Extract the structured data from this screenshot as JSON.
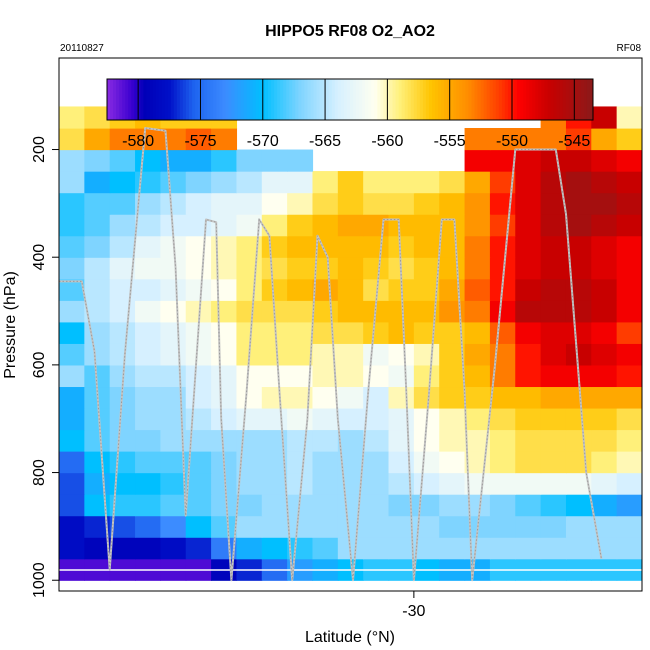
{
  "chart_data": {
    "type": "heatmap",
    "title": "HIPPO5 RF08 O2_AO2",
    "date_label": "20110827",
    "flight_label": "RF08",
    "xlabel": "Latitude (°N)",
    "ylabel": "Pressure (hPa)",
    "x_ticks": [
      {
        "value": -30,
        "label": "-30"
      }
    ],
    "y_ticks": [
      {
        "value": 200,
        "label": "200"
      },
      {
        "value": 400,
        "label": "400"
      },
      {
        "value": 600,
        "label": "600"
      },
      {
        "value": 800,
        "label": "800"
      },
      {
        "value": 1000,
        "label": "1000"
      }
    ],
    "xlim": [
      -37,
      -25.5
    ],
    "ylim": [
      1020,
      30
    ],
    "grid": false,
    "colorbar": {
      "placement": "top",
      "range": [
        -582.5,
        -543.5
      ],
      "ticks": [
        {
          "value": -580,
          "label": "-580"
        },
        {
          "value": -575,
          "label": "-575"
        },
        {
          "value": -570,
          "label": "-570"
        },
        {
          "value": -565,
          "label": "-565"
        },
        {
          "value": -560,
          "label": "-560"
        },
        {
          "value": -555,
          "label": "-555"
        },
        {
          "value": -550,
          "label": "-550"
        },
        {
          "value": -545,
          "label": "-545"
        }
      ],
      "stops": [
        {
          "v": -582.5,
          "c": "#8a2be2"
        },
        {
          "v": -580.5,
          "c": "#3a00d0"
        },
        {
          "v": -579.5,
          "c": "#0000b8"
        },
        {
          "v": -577.5,
          "c": "#0010c8"
        },
        {
          "v": -575.5,
          "c": "#1e64f0"
        },
        {
          "v": -573,
          "c": "#3c8cff"
        },
        {
          "v": -570,
          "c": "#00bfff"
        },
        {
          "v": -567,
          "c": "#7fd4ff"
        },
        {
          "v": -564,
          "c": "#d6f0ff"
        },
        {
          "v": -561,
          "c": "#fffff0"
        },
        {
          "v": -559,
          "c": "#fff07a"
        },
        {
          "v": -556.5,
          "c": "#ffc400"
        },
        {
          "v": -553.5,
          "c": "#ff8c00"
        },
        {
          "v": -551,
          "c": "#ff3c00"
        },
        {
          "v": -549.5,
          "c": "#ff0000"
        },
        {
          "v": -547,
          "c": "#c80000"
        },
        {
          "v": -543.5,
          "c": "#8b1a1a"
        }
      ]
    },
    "grid_x_edges": [
      -37,
      -36.5,
      -36,
      -35.5,
      -35,
      -34.5,
      -34,
      -33.5,
      -33,
      -32.5,
      -32,
      -31.5,
      -31,
      -30.5,
      -30,
      -29.5,
      -29,
      -28.5,
      -28,
      -27.5,
      -27,
      -26.5,
      -26,
      -25.5
    ],
    "grid_p_edges": [
      1000,
      960,
      920,
      880,
      840,
      800,
      760,
      720,
      680,
      640,
      600,
      560,
      520,
      480,
      440,
      400,
      360,
      320,
      280,
      240,
      200,
      160,
      120
    ],
    "cells": [
      [
        -581,
        -581,
        -581,
        -581,
        -581,
        -581,
        -579,
        -577,
        -575,
        -572,
        -571,
        -570,
        -569,
        -569,
        -570,
        -571,
        -571,
        -569,
        -569,
        -569,
        -569,
        -569,
        -569
      ],
      [
        -578,
        -579,
        -579,
        -579,
        -578,
        -577,
        -574,
        -571,
        -570,
        -569,
        -568,
        -566,
        -566,
        -566,
        -566,
        -566,
        -566,
        -566,
        -566,
        -566,
        -566,
        -566,
        -566
      ],
      [
        -578,
        -577,
        -576,
        -575,
        -573,
        -570,
        -568,
        -566,
        -566,
        -566,
        -566,
        -566,
        -566,
        -566,
        -566,
        -567,
        -567,
        -567,
        -567,
        -567,
        -566,
        -566,
        -566
      ],
      [
        -576,
        -570,
        -569,
        -569,
        -568,
        -568,
        -567,
        -567,
        -566,
        -566,
        -566,
        -566,
        -566,
        -567,
        -567,
        -566,
        -566,
        -567,
        -568,
        -569,
        -570,
        -571,
        -572
      ],
      [
        -576,
        -571,
        -570,
        -570,
        -569,
        -568,
        -567,
        -566,
        -566,
        -565,
        -566,
        -566,
        -566,
        -565,
        -564,
        -563,
        -562,
        -562,
        -562,
        -562,
        -562,
        -563,
        -564
      ],
      [
        -575,
        -570,
        -569,
        -568,
        -568,
        -568,
        -567,
        -566,
        -566,
        -565,
        -566,
        -566,
        -566,
        -564,
        -562,
        -561,
        -560,
        -559,
        -558,
        -558,
        -558,
        -559,
        -560
      ],
      [
        -570,
        -568,
        -567,
        -567,
        -566,
        -566,
        -566,
        -566,
        -566,
        -565,
        -565,
        -566,
        -565,
        -563,
        -561,
        -560,
        -560,
        -559,
        -558,
        -558,
        -558,
        -558,
        -559
      ],
      [
        -571,
        -568,
        -567,
        -566,
        -566,
        -565,
        -564,
        -563,
        -563,
        -562,
        -563,
        -564,
        -564,
        -563,
        -561,
        -560,
        -559,
        -558,
        -557,
        -557,
        -557,
        -557,
        -558
      ],
      [
        -571,
        -568,
        -567,
        -566,
        -566,
        -564,
        -563,
        -561,
        -560,
        -560,
        -561,
        -562,
        -564,
        -560,
        -558,
        -557,
        -557,
        -556,
        -556,
        -555,
        -555,
        -555,
        -555
      ],
      [
        -566,
        -568,
        -566,
        -565,
        -565,
        -564,
        -563,
        -561,
        -561,
        -561,
        -560,
        -560,
        -561,
        -562,
        -559,
        -557,
        -556,
        -553,
        -550,
        -549,
        -549,
        -549,
        -550
      ],
      [
        -568,
        -566,
        -565,
        -564,
        -563,
        -562,
        -561,
        -559,
        -559,
        -559,
        -560,
        -560,
        -562,
        -561,
        -560,
        -557,
        -555,
        -553,
        -550,
        -548,
        -547,
        -548,
        -549
      ],
      [
        -570,
        -566,
        -565,
        -564,
        -563,
        -562,
        -561,
        -559,
        -559,
        -559,
        -558,
        -558,
        -557,
        -556,
        -557,
        -557,
        -556,
        -552,
        -549,
        -548,
        -548,
        -549,
        -551
      ],
      [
        -566,
        -565,
        -564,
        -562,
        -561,
        -560,
        -559,
        -558,
        -558,
        -558,
        -557,
        -556,
        -556,
        -556,
        -556,
        -554,
        -553,
        -549,
        -546,
        -546,
        -546,
        -547,
        -549
      ],
      [
        -568,
        -565,
        -564,
        -564,
        -563,
        -562,
        -561,
        -559,
        -557,
        -556,
        -555,
        -556,
        -558,
        -557,
        -557,
        -555,
        -552,
        -550,
        -547,
        -546,
        -546,
        -547,
        -549
      ],
      [
        -567,
        -565,
        -563,
        -562,
        -562,
        -561,
        -560,
        -559,
        -558,
        -557,
        -557,
        -556,
        -557,
        -558,
        -557,
        -556,
        -553,
        -550,
        -548,
        -547,
        -547,
        -548,
        -549
      ],
      [
        -568,
        -567,
        -565,
        -563,
        -562,
        -561,
        -560,
        -559,
        -557,
        -556,
        -556,
        -556,
        -556,
        -557,
        -556,
        -556,
        -553,
        -550,
        -548,
        -547,
        -547,
        -548,
        -549
      ],
      [
        -569,
        -568,
        -566,
        -565,
        -564,
        -564,
        -563,
        -562,
        -559,
        -557,
        -556,
        -555,
        -555,
        -556,
        -556,
        -556,
        -554,
        -551,
        -548,
        -546,
        -545,
        -546,
        -547
      ],
      [
        -569,
        -568,
        -568,
        -566,
        -565,
        -564,
        -563,
        -563,
        -561,
        -560,
        -558,
        -557,
        -558,
        -558,
        -557,
        -556,
        -554,
        -550,
        -548,
        -546,
        -545,
        -545,
        -546
      ],
      [
        -566,
        -571,
        -570,
        -569,
        -568,
        -567,
        -566,
        -565,
        -563,
        -563,
        -559,
        -557,
        -559,
        -559,
        -559,
        -558,
        -555,
        -551,
        -548,
        -546,
        -545,
        -546,
        -547
      ],
      [
        -566,
        -567,
        -568,
        -570,
        -571,
        -571,
        -569,
        -567,
        -567,
        -567,
        null,
        null,
        null,
        null,
        null,
        null,
        -549,
        -549,
        -548,
        -547,
        -547,
        -548,
        -549
      ],
      [
        -558,
        -555,
        -553,
        -553,
        -553,
        -552,
        -553,
        null,
        null,
        null,
        null,
        null,
        null,
        null,
        null,
        null,
        -553,
        -553,
        -553,
        -553,
        -551,
        -555,
        -557
      ],
      [
        -559,
        -558,
        -557,
        -556,
        -557,
        -557,
        -557,
        null,
        null,
        null,
        null,
        null,
        null,
        null,
        null,
        null,
        null,
        null,
        null,
        -553,
        -550,
        -547,
        -560
      ]
    ],
    "flight_track": [
      {
        "lat": -37.0,
        "p": 445
      },
      {
        "lat": -36.55,
        "p": 445
      },
      {
        "lat": -36.3,
        "p": 575
      },
      {
        "lat": -36.0,
        "p": 980
      },
      {
        "lat": -35.7,
        "p": 580
      },
      {
        "lat": -35.3,
        "p": 160
      },
      {
        "lat": -34.9,
        "p": 165
      },
      {
        "lat": -34.7,
        "p": 420
      },
      {
        "lat": -34.5,
        "p": 880
      },
      {
        "lat": -34.1,
        "p": 330
      },
      {
        "lat": -33.9,
        "p": 335
      },
      {
        "lat": -33.8,
        "p": 700
      },
      {
        "lat": -33.6,
        "p": 1000
      },
      {
        "lat": -33.3,
        "p": 650
      },
      {
        "lat": -33.05,
        "p": 330
      },
      {
        "lat": -32.85,
        "p": 360
      },
      {
        "lat": -32.65,
        "p": 650
      },
      {
        "lat": -32.4,
        "p": 1000
      },
      {
        "lat": -32.1,
        "p": 700
      },
      {
        "lat": -31.9,
        "p": 360
      },
      {
        "lat": -31.7,
        "p": 400
      },
      {
        "lat": -31.5,
        "p": 700
      },
      {
        "lat": -31.2,
        "p": 1000
      },
      {
        "lat": -30.9,
        "p": 650
      },
      {
        "lat": -30.6,
        "p": 330
      },
      {
        "lat": -30.3,
        "p": 330
      },
      {
        "lat": -30.15,
        "p": 650
      },
      {
        "lat": -30.0,
        "p": 1000
      },
      {
        "lat": -29.7,
        "p": 650
      },
      {
        "lat": -29.45,
        "p": 330
      },
      {
        "lat": -29.2,
        "p": 330
      },
      {
        "lat": -29.0,
        "p": 650
      },
      {
        "lat": -28.85,
        "p": 1000
      },
      {
        "lat": -28.4,
        "p": 600
      },
      {
        "lat": -28.0,
        "p": 200
      },
      {
        "lat": -27.55,
        "p": 200
      },
      {
        "lat": -27.2,
        "p": 200
      },
      {
        "lat": -27.0,
        "p": 320
      },
      {
        "lat": -26.6,
        "p": 800
      },
      {
        "lat": -26.3,
        "p": 960
      }
    ]
  }
}
